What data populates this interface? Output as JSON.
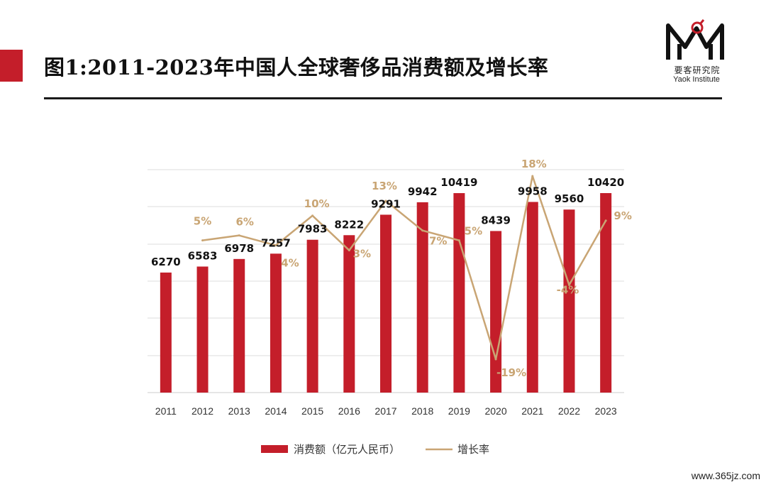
{
  "header": {
    "title": "图1:2011-2023年中国人全球奢侈品消费额及增长率"
  },
  "brand": {
    "name_cn": "要客研究院",
    "name_en": "Yaok Institute"
  },
  "watermark": "www.365jz.com",
  "colors": {
    "bar": "#c41e2a",
    "line": "#c9a574",
    "growth_label": "#c9a574",
    "value_label": "#111111",
    "grid": "#dddddd",
    "accent": "#c41e2a"
  },
  "chart_data": {
    "type": "bar",
    "title": "图1:2011-2023年中国人全球奢侈品消费额及增长率",
    "categories": [
      "2011",
      "2012",
      "2013",
      "2014",
      "2015",
      "2016",
      "2017",
      "2018",
      "2019",
      "2020",
      "2021",
      "2022",
      "2023"
    ],
    "series": [
      {
        "name": "消费额（亿元人民币）",
        "type": "bar",
        "values": [
          6270,
          6583,
          6978,
          7257,
          7983,
          8222,
          9291,
          9942,
          10419,
          8439,
          9958,
          9560,
          10420
        ],
        "labels": [
          "6270",
          "6583",
          "6978",
          "7257",
          "7983",
          "8222",
          "9291",
          "9942",
          "10419",
          "8439",
          "9958",
          "9560",
          "10420"
        ]
      },
      {
        "name": "增长率",
        "type": "line",
        "x": [
          "2012",
          "2013",
          "2014",
          "2015",
          "2016",
          "2017",
          "2018",
          "2019",
          "2020",
          "2021",
          "2022",
          "2023"
        ],
        "values": [
          5,
          6,
          4,
          10,
          3,
          13,
          7,
          5,
          -19,
          18,
          -4,
          9
        ],
        "labels": [
          "5%",
          "6%",
          "4%",
          "10%",
          "3%",
          "13%",
          "7%",
          "5%",
          "-19%",
          "18%",
          "-4%",
          "9%"
        ]
      }
    ],
    "grid": true,
    "legend": "bottom"
  }
}
